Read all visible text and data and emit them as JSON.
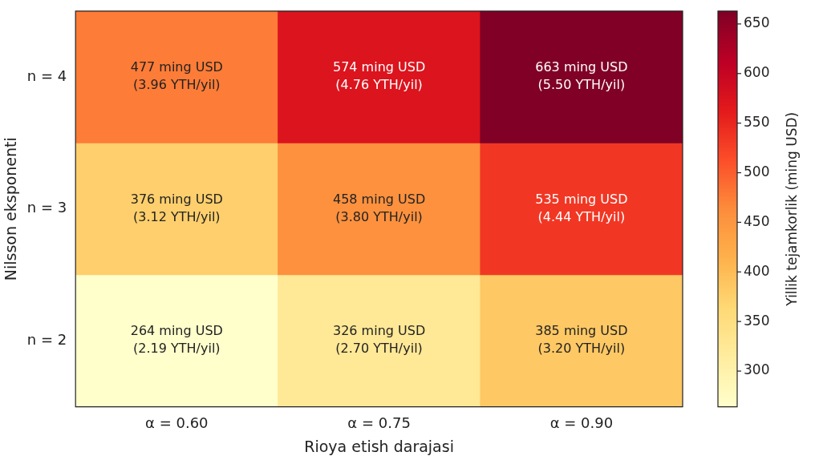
{
  "chart_data": {
    "type": "heatmap",
    "xlabel": "Rioya etish darajasi",
    "ylabel": "Nilsson eksponenti",
    "clabel": "Yillik tejamkorlik (ming USD)",
    "categories": [
      "α = 0.60",
      "α = 0.75",
      "α = 0.90"
    ],
    "y_categories": [
      "n = 4",
      "n = 3",
      "n = 2"
    ],
    "cells": [
      [
        477,
        574,
        663
      ],
      [
        376,
        458,
        535
      ],
      [
        264,
        326,
        385
      ]
    ],
    "cell_labels": [
      [
        "477 ming USD\n(3.96 YTH/yil)",
        "574 ming USD\n(4.76 YTH/yil)",
        "663 ming USD\n(5.50 YTH/yil)"
      ],
      [
        "376 ming USD\n(3.12 YTH/yil)",
        "458 ming USD\n(3.80 YTH/yil)",
        "535 ming USD\n(4.44 YTH/yil)"
      ],
      [
        "264 ming USD\n(2.19 YTH/yil)",
        "326 ming USD\n(2.70 YTH/yil)",
        "385 ming USD\n(3.20 YTH/yil)"
      ]
    ],
    "clim": [
      264,
      663
    ],
    "cticks": [
      300,
      350,
      400,
      450,
      500,
      550,
      600,
      650
    ]
  }
}
